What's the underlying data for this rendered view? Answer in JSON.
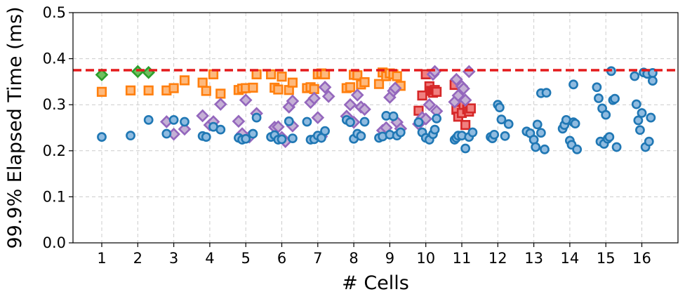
{
  "chart_data": {
    "type": "scatter",
    "title": "",
    "xlabel": "# Cells",
    "ylabel": "99.9% Elapsed Time (ms)",
    "categories": [
      "1",
      "2",
      "3",
      "4",
      "5",
      "6",
      "7",
      "8",
      "9",
      "10",
      "11",
      "12",
      "13",
      "14",
      "15",
      "16"
    ],
    "ylim": [
      0.0,
      0.5
    ],
    "yticks": [
      "0.0",
      "0.1",
      "0.2",
      "0.3",
      "0.4",
      "0.5"
    ],
    "grid": true,
    "reference_line": {
      "value": 0.375,
      "color": "#e41a1c",
      "style": "dashed"
    },
    "series": [
      {
        "name": "green",
        "marker": "diamond",
        "color": "#2ca02c",
        "fill": "#6fbf5e",
        "points": [
          [
            1,
            0.365
          ],
          [
            2,
            0.372
          ],
          [
            2.3,
            0.37
          ]
        ]
      },
      {
        "name": "orange",
        "marker": "square",
        "color": "#ff7f0e",
        "fill": "#fdb97d",
        "points": [
          [
            1,
            0.328
          ],
          [
            1.8,
            0.331
          ],
          [
            2.3,
            0.331
          ],
          [
            2.8,
            0.331
          ],
          [
            3.0,
            0.336
          ],
          [
            3.3,
            0.353
          ],
          [
            3.8,
            0.348
          ],
          [
            3.9,
            0.33
          ],
          [
            4.1,
            0.366
          ],
          [
            4.3,
            0.324
          ],
          [
            4.8,
            0.332
          ],
          [
            4.9,
            0.335
          ],
          [
            5.0,
            0.336
          ],
          [
            5.2,
            0.337
          ],
          [
            5.3,
            0.366
          ],
          [
            5.7,
            0.366
          ],
          [
            5.8,
            0.337
          ],
          [
            5.9,
            0.333
          ],
          [
            6.0,
            0.361
          ],
          [
            6.2,
            0.332
          ],
          [
            6.3,
            0.348
          ],
          [
            6.7,
            0.336
          ],
          [
            6.8,
            0.338
          ],
          [
            6.9,
            0.334
          ],
          [
            7.0,
            0.366
          ],
          [
            7.1,
            0.368
          ],
          [
            7.2,
            0.366
          ],
          [
            7.8,
            0.336
          ],
          [
            7.9,
            0.338
          ],
          [
            8.0,
            0.365
          ],
          [
            8.1,
            0.364
          ],
          [
            8.2,
            0.344
          ],
          [
            8.3,
            0.349
          ],
          [
            8.7,
            0.345
          ],
          [
            8.8,
            0.37
          ],
          [
            8.9,
            0.362
          ],
          [
            9.0,
            0.368
          ],
          [
            9.1,
            0.366
          ],
          [
            9.2,
            0.362
          ],
          [
            9.3,
            0.341
          ]
        ]
      },
      {
        "name": "red",
        "marker": "square",
        "color": "#d62728",
        "fill": "#f08080",
        "points": [
          [
            9.8,
            0.287
          ],
          [
            9.9,
            0.32
          ],
          [
            10.0,
            0.366
          ],
          [
            10.1,
            0.34
          ],
          [
            10.15,
            0.33
          ],
          [
            10.2,
            0.326
          ],
          [
            10.25,
            0.332
          ],
          [
            10.3,
            0.328
          ],
          [
            10.8,
            0.343
          ],
          [
            10.85,
            0.289
          ],
          [
            10.9,
            0.274
          ],
          [
            11.0,
            0.282
          ],
          [
            11.05,
            0.3
          ],
          [
            11.1,
            0.256
          ],
          [
            11.15,
            0.29
          ],
          [
            11.2,
            0.285
          ],
          [
            11.25,
            0.292
          ]
        ]
      },
      {
        "name": "purple",
        "marker": "diamond",
        "color": "#9467bd",
        "fill": "#c5b0d5",
        "points": [
          [
            2.8,
            0.263
          ],
          [
            3.0,
            0.236
          ],
          [
            3.3,
            0.247
          ],
          [
            3.8,
            0.276
          ],
          [
            4.0,
            0.256
          ],
          [
            4.1,
            0.263
          ],
          [
            4.3,
            0.301
          ],
          [
            4.8,
            0.264
          ],
          [
            4.9,
            0.237
          ],
          [
            5.0,
            0.31
          ],
          [
            5.1,
            0.23
          ],
          [
            5.3,
            0.281
          ],
          [
            5.8,
            0.251
          ],
          [
            5.9,
            0.252
          ],
          [
            6.0,
            0.229
          ],
          [
            6.1,
            0.22
          ],
          [
            6.2,
            0.295
          ],
          [
            6.3,
            0.308
          ],
          [
            6.3,
            0.254
          ],
          [
            6.8,
            0.305
          ],
          [
            6.9,
            0.314
          ],
          [
            7.0,
            0.272
          ],
          [
            7.1,
            0.231
          ],
          [
            7.2,
            0.338
          ],
          [
            7.3,
            0.318
          ],
          [
            7.8,
            0.275
          ],
          [
            7.9,
            0.3
          ],
          [
            8.0,
            0.262
          ],
          [
            8.1,
            0.321
          ],
          [
            8.2,
            0.295
          ],
          [
            8.3,
            0.29
          ],
          [
            8.8,
            0.244
          ],
          [
            8.9,
            0.25
          ],
          [
            9.0,
            0.316
          ],
          [
            9.1,
            0.33
          ],
          [
            9.15,
            0.336
          ],
          [
            9.2,
            0.262
          ],
          [
            9.3,
            0.248
          ],
          [
            9.8,
            0.258
          ],
          [
            9.9,
            0.272
          ],
          [
            10.0,
            0.269
          ],
          [
            10.1,
            0.3
          ],
          [
            10.2,
            0.366
          ],
          [
            10.25,
            0.372
          ],
          [
            10.3,
            0.286
          ],
          [
            10.8,
            0.306
          ],
          [
            10.85,
            0.355
          ],
          [
            10.9,
            0.32
          ],
          [
            11.0,
            0.34
          ],
          [
            11.05,
            0.335
          ],
          [
            11.1,
            0.31
          ],
          [
            11.2,
            0.372
          ]
        ]
      },
      {
        "name": "blue",
        "marker": "circle",
        "color": "#1f77b4",
        "fill": "#8fbbe0",
        "points": [
          [
            1,
            0.23
          ],
          [
            1.8,
            0.233
          ],
          [
            2.3,
            0.267
          ],
          [
            2.8,
            0.237
          ],
          [
            3.0,
            0.267
          ],
          [
            3.3,
            0.263
          ],
          [
            3.8,
            0.232
          ],
          [
            3.9,
            0.23
          ],
          [
            4.1,
            0.252
          ],
          [
            4.3,
            0.246
          ],
          [
            4.8,
            0.228
          ],
          [
            4.9,
            0.224
          ],
          [
            5.0,
            0.226
          ],
          [
            5.2,
            0.237
          ],
          [
            5.3,
            0.272
          ],
          [
            5.7,
            0.23
          ],
          [
            5.8,
            0.234
          ],
          [
            5.9,
            0.224
          ],
          [
            6.0,
            0.225
          ],
          [
            6.2,
            0.264
          ],
          [
            6.3,
            0.227
          ],
          [
            6.7,
            0.263
          ],
          [
            6.8,
            0.224
          ],
          [
            6.9,
            0.225
          ],
          [
            7.0,
            0.233
          ],
          [
            7.1,
            0.228
          ],
          [
            7.2,
            0.243
          ],
          [
            7.8,
            0.267
          ],
          [
            7.9,
            0.262
          ],
          [
            8.0,
            0.226
          ],
          [
            8.1,
            0.237
          ],
          [
            8.2,
            0.232
          ],
          [
            8.3,
            0.263
          ],
          [
            8.7,
            0.228
          ],
          [
            8.8,
            0.231
          ],
          [
            8.9,
            0.276
          ],
          [
            9.0,
            0.235
          ],
          [
            9.1,
            0.275
          ],
          [
            9.2,
            0.233
          ],
          [
            9.3,
            0.24
          ],
          [
            9.8,
            0.262
          ],
          [
            9.9,
            0.24
          ],
          [
            10.0,
            0.228
          ],
          [
            10.1,
            0.224
          ],
          [
            10.2,
            0.236
          ],
          [
            10.25,
            0.246
          ],
          [
            10.3,
            0.27
          ],
          [
            10.8,
            0.224
          ],
          [
            10.85,
            0.228
          ],
          [
            10.9,
            0.233
          ],
          [
            11.0,
            0.233
          ],
          [
            11.1,
            0.205
          ],
          [
            11.2,
            0.23
          ],
          [
            11.3,
            0.24
          ],
          [
            11.8,
            0.23
          ],
          [
            11.85,
            0.227
          ],
          [
            11.9,
            0.235
          ],
          [
            12.0,
            0.3
          ],
          [
            12.05,
            0.294
          ],
          [
            12.1,
            0.268
          ],
          [
            12.2,
            0.232
          ],
          [
            12.3,
            0.258
          ],
          [
            12.8,
            0.242
          ],
          [
            12.9,
            0.238
          ],
          [
            13.0,
            0.224
          ],
          [
            13.05,
            0.208
          ],
          [
            13.1,
            0.257
          ],
          [
            13.2,
            0.239
          ],
          [
            13.3,
            0.203
          ],
          [
            13.2,
            0.325
          ],
          [
            13.35,
            0.326
          ],
          [
            13.8,
            0.248
          ],
          [
            13.85,
            0.256
          ],
          [
            13.9,
            0.267
          ],
          [
            14.0,
            0.222
          ],
          [
            14.05,
            0.213
          ],
          [
            14.1,
            0.262
          ],
          [
            14.15,
            0.259
          ],
          [
            14.2,
            0.203
          ],
          [
            14.1,
            0.344
          ],
          [
            14.75,
            0.338
          ],
          [
            14.8,
            0.314
          ],
          [
            14.85,
            0.22
          ],
          [
            14.9,
            0.292
          ],
          [
            14.95,
            0.215
          ],
          [
            15.0,
            0.278
          ],
          [
            15.05,
            0.226
          ],
          [
            15.1,
            0.23
          ],
          [
            15.15,
            0.373
          ],
          [
            15.2,
            0.31
          ],
          [
            15.25,
            0.313
          ],
          [
            15.3,
            0.208
          ],
          [
            15.8,
            0.362
          ],
          [
            15.85,
            0.301
          ],
          [
            15.9,
            0.266
          ],
          [
            15.95,
            0.245
          ],
          [
            16.0,
            0.282
          ],
          [
            16.05,
            0.37
          ],
          [
            16.1,
            0.208
          ],
          [
            16.15,
            0.367
          ],
          [
            16.2,
            0.22
          ],
          [
            16.25,
            0.272
          ],
          [
            16.3,
            0.369
          ],
          [
            16.3,
            0.352
          ]
        ]
      }
    ]
  }
}
